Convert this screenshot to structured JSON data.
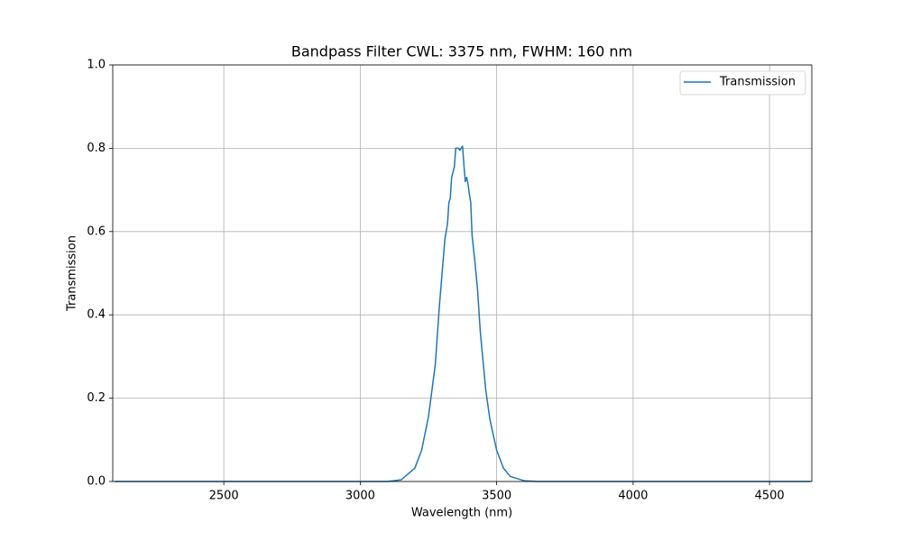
{
  "chart_data": {
    "type": "line",
    "title": "Bandpass Filter CWL: 3375 nm, FWHM: 160 nm",
    "x_label": "Wavelength (nm)",
    "y_label": "Transmission",
    "x": [
      2100,
      3100,
      3150,
      3200,
      3225,
      3250,
      3275,
      3290,
      3300,
      3310,
      3320,
      3325,
      3330,
      3335,
      3345,
      3350,
      3360,
      3365,
      3375,
      3380,
      3385,
      3390,
      3395,
      3400,
      3405,
      3410,
      3420,
      3430,
      3435,
      3440,
      3450,
      3460,
      3475,
      3500,
      3525,
      3550,
      3600,
      3650,
      4650
    ],
    "series": [
      {
        "name": "Transmission",
        "color": "#1f77b4",
        "values": [
          0,
          0,
          0.004,
          0.032,
          0.075,
          0.155,
          0.28,
          0.42,
          0.5,
          0.58,
          0.62,
          0.67,
          0.68,
          0.73,
          0.755,
          0.8,
          0.8,
          0.795,
          0.805,
          0.76,
          0.72,
          0.73,
          0.715,
          0.69,
          0.67,
          0.59,
          0.53,
          0.46,
          0.41,
          0.36,
          0.29,
          0.22,
          0.15,
          0.075,
          0.032,
          0.012,
          0.002,
          0,
          0
        ]
      }
    ],
    "xlim": [
      2093,
      4655
    ],
    "ylim": [
      0,
      1
    ],
    "xticks": [
      2500,
      3000,
      3500,
      4000,
      4500
    ],
    "yticks": [
      {
        "value": 0,
        "label": "0.0"
      },
      0.2,
      0.4,
      0.6,
      0.8,
      {
        "value": 1,
        "label": "1.0"
      }
    ],
    "grid": true,
    "legend": "upper right"
  }
}
